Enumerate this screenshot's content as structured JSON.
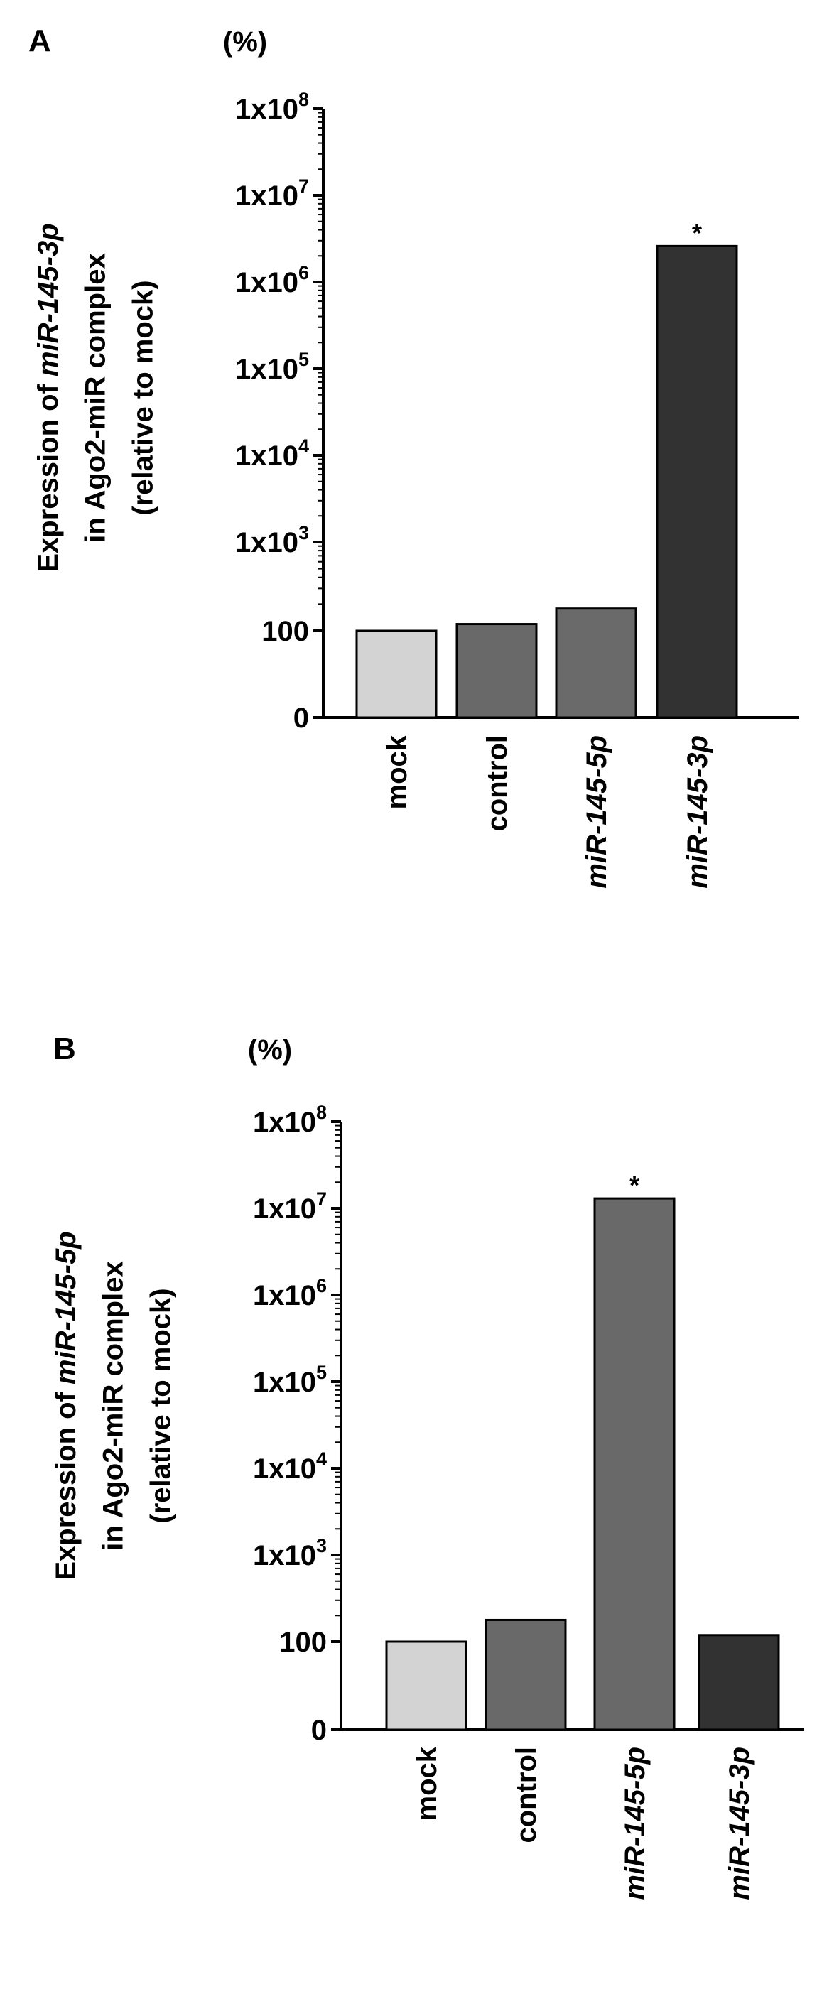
{
  "chart_data": [
    {
      "panel_label": "A",
      "type": "bar",
      "unit": "(%)",
      "ylabel_parts": [
        {
          "text": "Expression of ",
          "italic": false
        },
        {
          "text": "miR-145-3p",
          "italic": true
        }
      ],
      "ylabel_line2": "in Ago2-miR complex",
      "ylabel_line3": "(relative to mock)",
      "yscale": "log",
      "ylim": [
        0,
        100000000
      ],
      "yticks": [
        {
          "label": "0",
          "value": 0
        },
        {
          "label": "100",
          "value": 100
        },
        {
          "base": "1x10",
          "exp": "3",
          "value": 1000
        },
        {
          "base": "1x10",
          "exp": "4",
          "value": 10000
        },
        {
          "base": "1x10",
          "exp": "5",
          "value": 100000
        },
        {
          "base": "1x10",
          "exp": "6",
          "value": 1000000
        },
        {
          "base": "1x10",
          "exp": "7",
          "value": 10000000
        },
        {
          "base": "1x10",
          "exp": "8",
          "value": 100000000
        }
      ],
      "categories": [
        {
          "label": "mock",
          "italic": false
        },
        {
          "label": "control",
          "italic": false
        },
        {
          "label": "miR-145-5p",
          "italic": true
        },
        {
          "label": "miR-145-3p",
          "italic": true
        }
      ],
      "values": [
        100,
        119,
        178,
        2600000
      ],
      "bar_colors": [
        "#d3d3d3",
        "#696969",
        "#6a6a6a",
        "#323232"
      ],
      "annotations": [
        {
          "category_index": 3,
          "text": "*"
        }
      ]
    },
    {
      "panel_label": "B",
      "type": "bar",
      "unit": "(%)",
      "ylabel_parts": [
        {
          "text": "Expression of ",
          "italic": false
        },
        {
          "text": "miR-145-5p",
          "italic": true
        }
      ],
      "ylabel_line2": "in Ago2-miR complex",
      "ylabel_line3": "(relative to mock)",
      "yscale": "log",
      "ylim": [
        0,
        100000000
      ],
      "yticks": [
        {
          "label": "0",
          "value": 0
        },
        {
          "label": "100",
          "value": 100
        },
        {
          "base": "1x10",
          "exp": "3",
          "value": 1000
        },
        {
          "base": "1x10",
          "exp": "4",
          "value": 10000
        },
        {
          "base": "1x10",
          "exp": "5",
          "value": 100000
        },
        {
          "base": "1x10",
          "exp": "6",
          "value": 1000000
        },
        {
          "base": "1x10",
          "exp": "7",
          "value": 10000000
        },
        {
          "base": "1x10",
          "exp": "8",
          "value": 100000000
        }
      ],
      "categories": [
        {
          "label": "mock",
          "italic": false
        },
        {
          "label": "control",
          "italic": false
        },
        {
          "label": "miR-145-5p",
          "italic": true
        },
        {
          "label": "miR-145-3p",
          "italic": true
        }
      ],
      "values": [
        100,
        178,
        13000000,
        119
      ],
      "bar_colors": [
        "#d3d3d3",
        "#696969",
        "#696969",
        "#323232"
      ],
      "annotations": [
        {
          "category_index": 2,
          "text": "*"
        }
      ]
    }
  ]
}
